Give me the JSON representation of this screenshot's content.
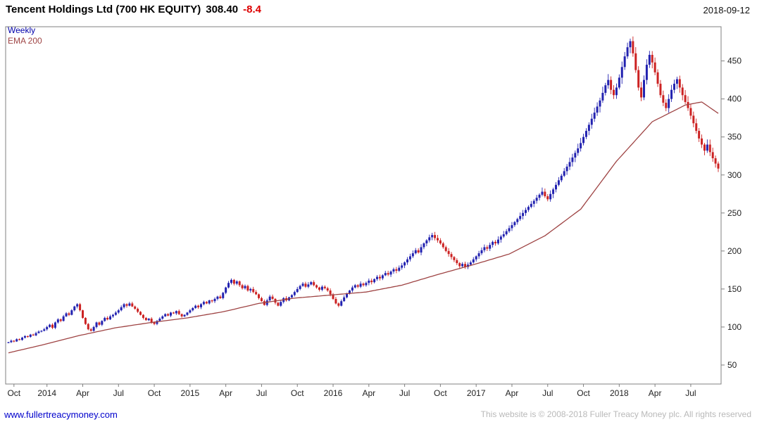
{
  "header": {
    "title": "Tencent Holdings Ltd (700 HK EQUITY)",
    "price": "308.40",
    "change": "-8.4",
    "date": "2018-09-12"
  },
  "legend": {
    "weekly": "Weekly",
    "ema": "EMA 200"
  },
  "footer": {
    "site": "www.fullertreacymoney.com",
    "copyright": "This website is © 2008-2018 Fuller Treacy Money plc. All rights reserved"
  },
  "colors": {
    "up": "#2222b0",
    "down": "#cc2222",
    "ema": "#9e4343",
    "change": "#dd0000",
    "legend_weekly": "#0000aa",
    "site_link": "#0000cc",
    "copyright": "#b9b9b9",
    "axis_text": "#222222",
    "border": "#808080"
  },
  "chart_data": {
    "type": "candlestick",
    "title": "Tencent Holdings Ltd (700 HK EQUITY)",
    "subtitle": "Weekly candles with EMA 200 overlay",
    "last_price": 308.4,
    "change": -8.4,
    "as_of": "2018-09-12",
    "grid": false,
    "legend_position": "top-left-inside",
    "y_axis": {
      "min": 25,
      "max": 495,
      "ticks": [
        50,
        100,
        150,
        200,
        250,
        300,
        350,
        400,
        450
      ],
      "side": "right"
    },
    "x_axis": {
      "labels": [
        {
          "label": "Oct",
          "week": 2
        },
        {
          "label": "2014",
          "week": 14
        },
        {
          "label": "Apr",
          "week": 27
        },
        {
          "label": "Jul",
          "week": 40
        },
        {
          "label": "Oct",
          "week": 53
        },
        {
          "label": "2015",
          "week": 66
        },
        {
          "label": "Apr",
          "week": 79
        },
        {
          "label": "Jul",
          "week": 92
        },
        {
          "label": "Oct",
          "week": 105
        },
        {
          "label": "2016",
          "week": 118
        },
        {
          "label": "Apr",
          "week": 131
        },
        {
          "label": "Jul",
          "week": 144
        },
        {
          "label": "Oct",
          "week": 157
        },
        {
          "label": "2017",
          "week": 170
        },
        {
          "label": "Apr",
          "week": 183
        },
        {
          "label": "Jul",
          "week": 196
        },
        {
          "label": "Oct",
          "week": 209
        },
        {
          "label": "2018",
          "week": 222
        },
        {
          "label": "Apr",
          "week": 235
        },
        {
          "label": "Jul",
          "week": 248
        }
      ]
    },
    "weekly_closes": [
      80,
      82,
      81,
      84,
      83,
      86,
      88,
      87,
      90,
      89,
      92,
      94,
      95,
      97,
      100,
      103,
      99,
      106,
      110,
      108,
      114,
      118,
      116,
      122,
      127,
      130,
      122,
      112,
      104,
      97,
      95,
      100,
      106,
      103,
      108,
      112,
      110,
      114,
      116,
      119,
      122,
      126,
      130,
      128,
      131,
      127,
      124,
      120,
      116,
      112,
      109,
      111,
      106,
      104,
      108,
      111,
      114,
      117,
      115,
      119,
      118,
      121,
      117,
      114,
      116,
      119,
      122,
      125,
      128,
      126,
      130,
      133,
      131,
      135,
      134,
      137,
      140,
      138,
      145,
      152,
      158,
      162,
      157,
      160,
      155,
      151,
      154,
      148,
      150,
      146,
      143,
      138,
      134,
      129,
      135,
      140,
      137,
      132,
      128,
      133,
      138,
      135,
      139,
      142,
      146,
      150,
      154,
      157,
      153,
      156,
      159,
      155,
      152,
      149,
      153,
      151,
      148,
      143,
      137,
      131,
      128,
      134,
      139,
      144,
      148,
      152,
      155,
      153,
      157,
      155,
      158,
      161,
      159,
      163,
      166,
      164,
      168,
      171,
      169,
      173,
      176,
      174,
      178,
      181,
      185,
      189,
      193,
      197,
      201,
      198,
      205,
      210,
      214,
      218,
      221,
      217,
      214,
      210,
      205,
      200,
      196,
      192,
      188,
      184,
      180,
      183,
      179,
      182,
      185,
      189,
      193,
      197,
      201,
      205,
      203,
      208,
      212,
      210,
      215,
      219,
      222,
      226,
      230,
      234,
      238,
      242,
      246,
      250,
      254,
      258,
      262,
      266,
      270,
      274,
      278,
      272,
      268,
      275,
      281,
      287,
      293,
      299,
      305,
      311,
      317,
      323,
      329,
      335,
      342,
      350,
      358,
      366,
      374,
      382,
      390,
      398,
      408,
      418,
      425,
      412,
      405,
      415,
      428,
      442,
      456,
      468,
      476,
      460,
      438,
      415,
      402,
      425,
      445,
      458,
      448,
      435,
      420,
      405,
      395,
      388,
      400,
      412,
      420,
      426,
      415,
      405,
      396,
      388,
      378,
      368,
      358,
      348,
      340,
      332,
      340,
      330,
      322,
      315,
      308.4
    ],
    "ema_200": {
      "anchors": [
        [
          0,
          66
        ],
        [
          13,
          77
        ],
        [
          26,
          89
        ],
        [
          39,
          99
        ],
        [
          52,
          106
        ],
        [
          65,
          112
        ],
        [
          78,
          120
        ],
        [
          91,
          131
        ],
        [
          104,
          138
        ],
        [
          117,
          142
        ],
        [
          130,
          146
        ],
        [
          143,
          155
        ],
        [
          156,
          169
        ],
        [
          169,
          182
        ],
        [
          182,
          196
        ],
        [
          195,
          220
        ],
        [
          208,
          255
        ],
        [
          221,
          318
        ],
        [
          234,
          370
        ],
        [
          246,
          392
        ],
        [
          252,
          396
        ],
        [
          258,
          381
        ]
      ]
    }
  }
}
